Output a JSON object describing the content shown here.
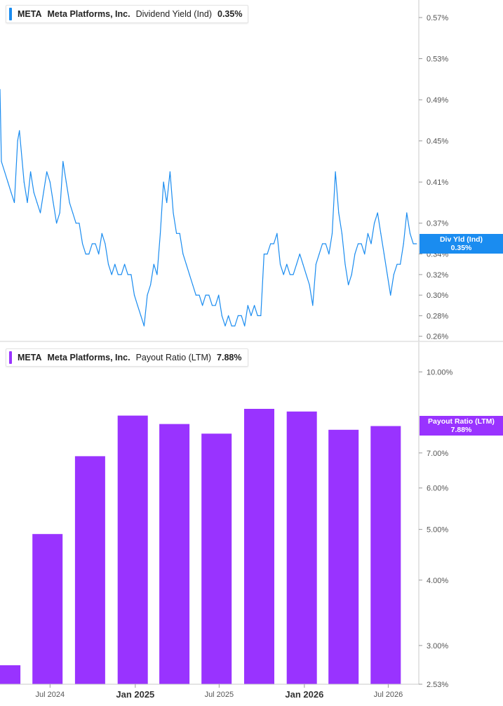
{
  "chart_data": [
    {
      "type": "line",
      "legend": {
        "ticker": "META",
        "company": "Meta Platforms, Inc.",
        "metric": "Dividend Yield (Ind)",
        "value": "0.35%"
      },
      "flag": {
        "label": "Div Yld (Ind)",
        "value": "0.35%"
      },
      "color": "#1a8cf0",
      "ylim": [
        0.255,
        0.585
      ],
      "y_ticks": [
        0.26,
        0.28,
        0.3,
        0.32,
        0.34,
        0.37,
        0.41,
        0.45,
        0.49,
        0.53,
        0.57
      ],
      "y_tick_labels": [
        "0.26%",
        "0.28%",
        "0.30%",
        "0.32%",
        "0.34%",
        "0.37%",
        "0.41%",
        "0.45%",
        "0.49%",
        "0.53%",
        "0.57%"
      ],
      "x_range": [
        "2024-03-15",
        "2026-09-05"
      ],
      "series": [
        {
          "x": [
            "2024-03-15",
            "2024-03-18",
            "2024-03-25",
            "2024-04-01",
            "2024-04-08",
            "2024-04-15",
            "2024-04-22",
            "2024-04-26",
            "2024-05-06",
            "2024-05-13",
            "2024-05-20",
            "2024-05-27",
            "2024-06-03",
            "2024-06-10",
            "2024-06-17",
            "2024-06-24",
            "2024-07-01",
            "2024-07-08",
            "2024-07-15",
            "2024-07-22",
            "2024-07-29",
            "2024-08-05",
            "2024-08-12",
            "2024-08-19",
            "2024-08-26",
            "2024-09-02",
            "2024-09-09",
            "2024-09-16",
            "2024-09-23",
            "2024-09-30",
            "2024-10-07",
            "2024-10-14",
            "2024-10-21",
            "2024-10-28",
            "2024-11-04",
            "2024-11-11",
            "2024-11-18",
            "2024-11-25",
            "2024-12-02",
            "2024-12-09",
            "2024-12-16",
            "2024-12-23",
            "2024-12-30",
            "2025-01-06",
            "2025-01-13",
            "2025-01-20",
            "2025-01-27",
            "2025-02-03",
            "2025-02-10",
            "2025-02-17",
            "2025-02-24",
            "2025-03-03",
            "2025-03-10",
            "2025-03-17",
            "2025-03-24",
            "2025-03-31",
            "2025-04-07",
            "2025-04-14",
            "2025-04-21",
            "2025-04-28",
            "2025-05-05",
            "2025-05-12",
            "2025-05-19",
            "2025-05-26",
            "2025-06-02",
            "2025-06-09",
            "2025-06-16",
            "2025-06-23",
            "2025-06-30",
            "2025-07-07",
            "2025-07-14",
            "2025-07-21",
            "2025-07-28",
            "2025-08-04",
            "2025-08-11",
            "2025-08-18",
            "2025-08-25",
            "2025-09-01",
            "2025-09-08",
            "2025-09-15",
            "2025-09-22",
            "2025-09-29",
            "2025-10-06",
            "2025-10-13",
            "2025-10-20",
            "2025-10-27",
            "2025-11-03",
            "2025-11-10",
            "2025-11-17",
            "2025-11-24",
            "2025-12-01",
            "2025-12-08",
            "2025-12-15",
            "2025-12-22",
            "2025-12-29",
            "2026-01-05",
            "2026-01-12",
            "2026-01-19",
            "2026-01-26",
            "2026-02-02",
            "2026-02-09",
            "2026-02-16",
            "2026-02-23",
            "2026-03-02",
            "2026-03-09",
            "2026-03-16",
            "2026-03-23",
            "2026-03-30",
            "2026-04-06",
            "2026-04-13",
            "2026-04-20",
            "2026-04-27",
            "2026-05-04",
            "2026-05-11",
            "2026-05-18",
            "2026-05-25",
            "2026-06-01",
            "2026-06-08",
            "2026-06-15",
            "2026-06-22",
            "2026-06-29",
            "2026-07-06",
            "2026-07-13",
            "2026-07-20",
            "2026-07-27",
            "2026-08-03",
            "2026-08-10",
            "2026-08-17",
            "2026-08-24",
            "2026-08-31"
          ],
          "y": [
            0.5,
            0.43,
            0.42,
            0.41,
            0.4,
            0.39,
            0.45,
            0.46,
            0.41,
            0.39,
            0.42,
            0.4,
            0.39,
            0.38,
            0.4,
            0.42,
            0.41,
            0.39,
            0.37,
            0.38,
            0.43,
            0.41,
            0.39,
            0.38,
            0.37,
            0.37,
            0.35,
            0.34,
            0.34,
            0.35,
            0.35,
            0.34,
            0.36,
            0.35,
            0.33,
            0.32,
            0.33,
            0.32,
            0.32,
            0.33,
            0.32,
            0.32,
            0.3,
            0.29,
            0.28,
            0.27,
            0.3,
            0.31,
            0.33,
            0.32,
            0.36,
            0.41,
            0.39,
            0.42,
            0.38,
            0.36,
            0.36,
            0.34,
            0.33,
            0.32,
            0.31,
            0.3,
            0.3,
            0.29,
            0.3,
            0.3,
            0.29,
            0.29,
            0.3,
            0.28,
            0.27,
            0.28,
            0.27,
            0.27,
            0.28,
            0.28,
            0.27,
            0.29,
            0.28,
            0.29,
            0.28,
            0.28,
            0.34,
            0.34,
            0.35,
            0.35,
            0.36,
            0.33,
            0.32,
            0.33,
            0.32,
            0.32,
            0.33,
            0.34,
            0.33,
            0.32,
            0.31,
            0.29,
            0.33,
            0.34,
            0.35,
            0.35,
            0.34,
            0.36,
            0.42,
            0.38,
            0.36,
            0.33,
            0.31,
            0.32,
            0.34,
            0.35,
            0.35,
            0.34,
            0.36,
            0.35,
            0.37,
            0.38,
            0.36,
            0.34,
            0.32,
            0.3,
            0.32,
            0.33,
            0.33,
            0.35,
            0.38,
            0.36,
            0.35,
            0.35
          ]
        }
      ]
    },
    {
      "type": "bar",
      "legend": {
        "ticker": "META",
        "company": "Meta Platforms, Inc.",
        "metric": "Payout Ratio (LTM)",
        "value": "7.88%"
      },
      "flag": {
        "label": "Payout Ratio (LTM)",
        "value": "7.88%"
      },
      "color": "#9933ff",
      "log_scale": true,
      "ylim": [
        2.53,
        11.4
      ],
      "y_ticks": [
        2.53,
        3.0,
        4.0,
        5.0,
        6.0,
        7.0,
        10.0
      ],
      "y_tick_labels": [
        "2.53%",
        "3.00%",
        "4.00%",
        "5.00%",
        "6.00%",
        "7.00%",
        "10.00%"
      ],
      "x_range": [
        "2024-03-15",
        "2026-09-05"
      ],
      "x_ticks": [
        {
          "date": "2024-07-01",
          "label": "Jul 2024",
          "bold": false
        },
        {
          "date": "2025-01-01",
          "label": "Jan 2025",
          "bold": true
        },
        {
          "date": "2025-07-01",
          "label": "Jul 2025",
          "bold": false
        },
        {
          "date": "2026-01-01",
          "label": "Jan 2026",
          "bold": true
        },
        {
          "date": "2026-07-01",
          "label": "Jul 2026",
          "bold": false
        }
      ],
      "categories": [
        "2024-03-31",
        "2024-06-30",
        "2024-09-30",
        "2024-12-31",
        "2025-03-31",
        "2025-06-30",
        "2025-09-30",
        "2025-12-31",
        "2026-03-31",
        "2026-06-30"
      ],
      "values": [
        2.75,
        4.9,
        6.9,
        8.25,
        7.95,
        7.62,
        8.5,
        8.4,
        7.75,
        7.88
      ]
    }
  ]
}
